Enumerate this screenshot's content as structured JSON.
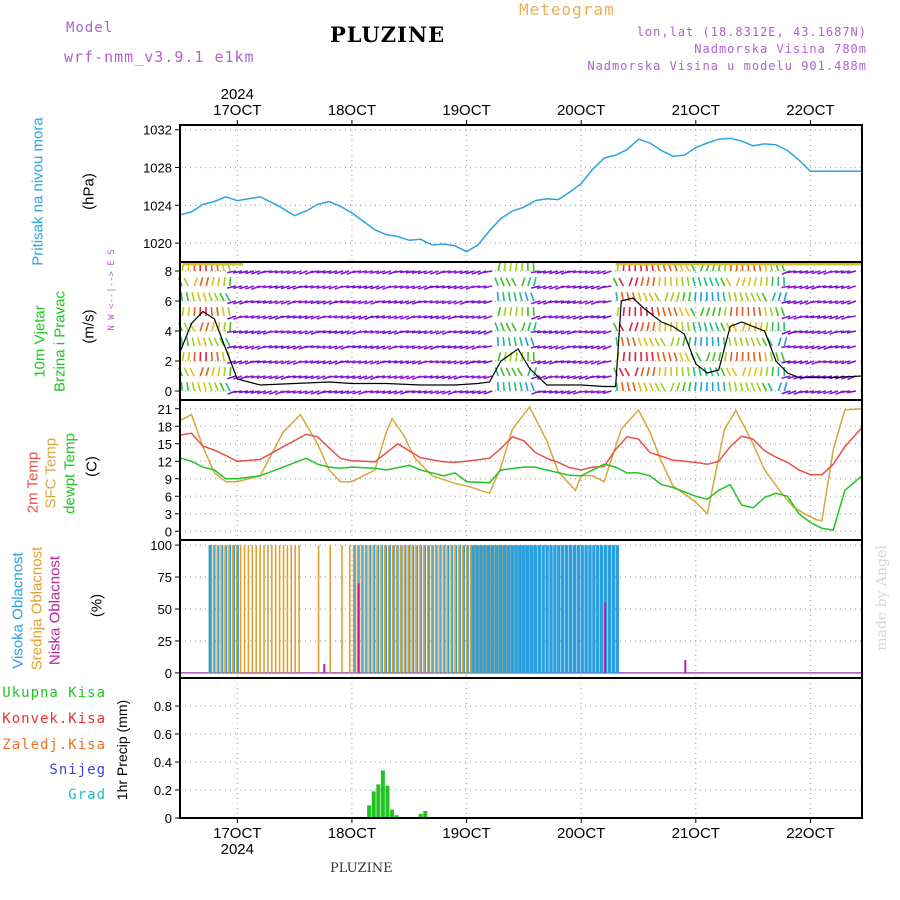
{
  "header": {
    "model_label": "Model",
    "model_name": "wrf-nmm_v3.9.1  e1km",
    "meteogram_label": "Meteogram",
    "title": "PLUZINE",
    "coords": "lon,lat (18.8312E, 43.1687N)",
    "elevation": "Nadmorska Visina 780m",
    "model_elevation": "Nadmorska Visina u modelu 901.488m",
    "footer_title": "PLUZINE",
    "watermark": "made by Angel"
  },
  "colors": {
    "pressure": "#2aa3e0",
    "temp2m": "#e8504a",
    "sfc_temp": "#d6a73c",
    "dewpt": "#22c422",
    "cloud_high": "#2a9fe0",
    "cloud_mid": "#e0a030",
    "cloud_low": "#c020a0",
    "precip_total": "#22c422",
    "precip_conv": "#e83030",
    "precip_frz": "#f07020",
    "snow": "#4040e0",
    "graupel": "#20c0c0",
    "wind_purple": "#8a1ad8",
    "header_purple": "#b060d0",
    "header_orange": "#e8b050"
  },
  "time_axis": {
    "year_label": "2024",
    "days": [
      "17OCT",
      "18OCT",
      "19OCT",
      "20OCT",
      "21OCT",
      "22OCT"
    ]
  },
  "panels": {
    "pressure": {
      "label": "Pritisak na nivou mora",
      "unit": "(hPa)"
    },
    "wind": {
      "label_line1": "10m Vjetar",
      "label_line2": "Brzina i Pravac",
      "unit": "(m/s)",
      "compass": "N  W <--|--> E  S"
    },
    "temp": {
      "label_line1": "2m Temp",
      "label_line2": "SFC Temp",
      "label_line3": "dewpt Temp",
      "unit": "(C)"
    },
    "cloud": {
      "label_line1": "Visoka Oblacnost",
      "label_line2": "Srednja Oblacnost",
      "label_line3": "Niska Oblacnost",
      "unit": "(%)"
    },
    "precip": {
      "legend": [
        "Ukupna Kisa",
        "Konvek.Kisa",
        "Zaledj.Kisa",
        "Snijeg",
        "Grad"
      ],
      "unit": "1hr Precip (mm)"
    }
  },
  "chart_data": [
    {
      "type": "line",
      "panel": "pressure",
      "ylabel": "(hPa)",
      "ylim": [
        1018,
        1032.5
      ],
      "yticks": [
        1020,
        1024,
        1028,
        1032
      ],
      "xlim_days": [
        16.5,
        22.45
      ],
      "series": [
        {
          "name": "Pritisak na nivou mora",
          "x": [
            16.5,
            16.6,
            16.7,
            16.8,
            16.9,
            17.0,
            17.1,
            17.2,
            17.35,
            17.5,
            17.6,
            17.7,
            17.8,
            17.9,
            18.0,
            18.1,
            18.2,
            18.3,
            18.4,
            18.5,
            18.6,
            18.7,
            18.8,
            18.9,
            19.0,
            19.1,
            19.2,
            19.3,
            19.4,
            19.5,
            19.6,
            19.7,
            19.8,
            19.9,
            20.0,
            20.1,
            20.2,
            20.3,
            20.4,
            20.5,
            20.6,
            20.7,
            20.8,
            20.9,
            21.0,
            21.1,
            21.2,
            21.3,
            21.4,
            21.5,
            21.6,
            21.7,
            21.8,
            21.9,
            22.0,
            22.1,
            22.2,
            22.3,
            22.45
          ],
          "values": [
            1023.0,
            1023.3,
            1024.1,
            1024.4,
            1024.9,
            1024.5,
            1024.7,
            1024.9,
            1024.0,
            1022.9,
            1023.4,
            1024.1,
            1024.4,
            1023.9,
            1023.2,
            1022.3,
            1021.4,
            1020.9,
            1020.7,
            1020.3,
            1020.4,
            1019.8,
            1019.9,
            1019.7,
            1019.1,
            1019.8,
            1021.3,
            1022.6,
            1023.4,
            1023.8,
            1024.5,
            1024.7,
            1024.6,
            1025.4,
            1026.3,
            1027.8,
            1029.0,
            1029.3,
            1029.9,
            1031.0,
            1030.6,
            1029.8,
            1029.2,
            1029.3,
            1030.1,
            1030.6,
            1031.0,
            1031.1,
            1030.8,
            1030.3,
            1030.5,
            1030.4,
            1029.8,
            1028.8,
            1027.6,
            1027.6,
            1027.6,
            1027.6,
            1027.6
          ]
        }
      ]
    },
    {
      "type": "line",
      "panel": "wind",
      "ylabel": "(m/s)",
      "ylim": [
        -0.6,
        8.6
      ],
      "yticks": [
        0,
        2,
        4,
        6,
        8
      ],
      "series": [
        {
          "name": "10m Vjetar",
          "x": [
            16.5,
            16.6,
            16.7,
            16.8,
            16.9,
            17.0,
            17.2,
            17.5,
            17.8,
            18.0,
            18.3,
            18.6,
            18.9,
            19.1,
            19.2,
            19.3,
            19.45,
            19.55,
            19.7,
            20.0,
            20.2,
            20.3,
            20.35,
            20.45,
            20.55,
            20.7,
            20.8,
            20.9,
            21.0,
            21.1,
            21.2,
            21.3,
            21.4,
            21.6,
            21.7,
            21.8,
            21.9,
            22.0,
            22.2,
            22.45
          ],
          "values": [
            2.6,
            4.5,
            5.3,
            4.8,
            2.8,
            0.8,
            0.4,
            0.5,
            0.6,
            0.5,
            0.5,
            0.4,
            0.4,
            0.5,
            0.6,
            2.0,
            2.8,
            1.5,
            0.4,
            0.4,
            0.3,
            0.3,
            6.0,
            6.2,
            5.5,
            4.6,
            4.3,
            3.8,
            1.8,
            1.2,
            1.4,
            4.3,
            4.6,
            4.0,
            2.0,
            1.2,
            0.9,
            0.9,
            0.9,
            1.0
          ]
        }
      ]
    },
    {
      "type": "line",
      "panel": "temp",
      "ylabel": "(C)",
      "ylim": [
        -1.5,
        22.5
      ],
      "yticks": [
        0,
        3,
        6,
        9,
        12,
        15,
        18,
        21
      ],
      "series": [
        {
          "name": "2m Temp",
          "x": [
            16.5,
            16.6,
            16.7,
            16.8,
            16.9,
            17.0,
            17.2,
            17.4,
            17.6,
            17.7,
            17.8,
            17.9,
            18.0,
            18.2,
            18.4,
            18.5,
            18.6,
            18.8,
            18.9,
            19.0,
            19.2,
            19.3,
            19.4,
            19.5,
            19.6,
            19.7,
            19.8,
            19.9,
            20.0,
            20.1,
            20.2,
            20.3,
            20.4,
            20.5,
            20.6,
            20.8,
            21.0,
            21.1,
            21.2,
            21.3,
            21.4,
            21.5,
            21.6,
            21.7,
            21.8,
            21.9,
            22.0,
            22.1,
            22.2,
            22.3,
            22.45
          ],
          "values": [
            16.5,
            16.8,
            14.6,
            13.9,
            13.0,
            12.0,
            12.3,
            14.5,
            16.6,
            16.2,
            14.3,
            12.5,
            12.1,
            11.9,
            15.0,
            13.8,
            12.6,
            11.9,
            11.8,
            12.0,
            12.5,
            14.2,
            16.2,
            15.5,
            13.5,
            12.5,
            11.8,
            10.9,
            10.5,
            11.0,
            11.1,
            14.0,
            16.2,
            15.8,
            13.5,
            12.2,
            11.8,
            11.5,
            12.0,
            14.5,
            16.3,
            15.8,
            13.8,
            12.7,
            11.8,
            10.5,
            9.7,
            9.7,
            11.5,
            14.5,
            17.8
          ]
        },
        {
          "name": "SFC Temp",
          "x": [
            16.5,
            16.6,
            16.7,
            16.8,
            16.9,
            17.0,
            17.2,
            17.4,
            17.55,
            17.7,
            17.8,
            17.9,
            18.0,
            18.2,
            18.3,
            18.35,
            18.45,
            18.55,
            18.7,
            18.9,
            19.0,
            19.2,
            19.3,
            19.4,
            19.55,
            19.7,
            19.8,
            19.95,
            20.0,
            20.1,
            20.2,
            20.35,
            20.5,
            20.6,
            20.7,
            20.8,
            21.0,
            21.1,
            21.25,
            21.35,
            21.5,
            21.6,
            21.75,
            21.85,
            21.95,
            22.0,
            22.05,
            22.1,
            22.2,
            22.3,
            22.45
          ],
          "values": [
            19.0,
            20.0,
            14.5,
            10.0,
            8.5,
            8.5,
            9.5,
            17.0,
            20.0,
            15.0,
            10.5,
            8.5,
            8.5,
            10.5,
            17.0,
            19.3,
            16.5,
            12.5,
            9.5,
            8.2,
            7.8,
            6.5,
            11.0,
            17.5,
            21.3,
            15.5,
            10.2,
            7.0,
            9.5,
            9.5,
            8.5,
            17.5,
            20.8,
            17.0,
            12.0,
            7.8,
            5.0,
            3.0,
            17.5,
            20.7,
            15.0,
            10.5,
            6.5,
            4.2,
            3.0,
            2.5,
            2.0,
            1.8,
            14.0,
            20.8,
            21.0
          ]
        },
        {
          "name": "dewpt Temp",
          "x": [
            16.5,
            16.6,
            16.7,
            16.8,
            16.9,
            17.0,
            17.2,
            17.4,
            17.6,
            17.7,
            17.8,
            17.9,
            18.0,
            18.2,
            18.3,
            18.5,
            18.6,
            18.8,
            18.9,
            19.0,
            19.2,
            19.3,
            19.5,
            19.6,
            19.7,
            19.9,
            20.0,
            20.2,
            20.3,
            20.4,
            20.5,
            20.6,
            20.7,
            20.8,
            21.0,
            21.1,
            21.2,
            21.3,
            21.4,
            21.5,
            21.6,
            21.7,
            21.8,
            21.9,
            22.0,
            22.1,
            22.2,
            22.3,
            22.45
          ],
          "values": [
            12.6,
            12.0,
            11.0,
            10.5,
            9.0,
            9.0,
            9.5,
            11.0,
            12.5,
            11.5,
            11.0,
            10.8,
            11.0,
            10.8,
            10.5,
            11.3,
            10.5,
            9.5,
            10.0,
            8.5,
            8.3,
            10.5,
            11.0,
            11.0,
            10.5,
            9.6,
            9.5,
            11.5,
            11.0,
            10.0,
            10.0,
            9.5,
            8.0,
            7.5,
            6.0,
            5.5,
            7.0,
            8.0,
            4.5,
            4.0,
            5.8,
            6.5,
            6.0,
            3.0,
            1.5,
            0.5,
            0.2,
            7.0,
            9.5
          ]
        }
      ]
    },
    {
      "type": "bar",
      "panel": "cloud",
      "ylabel": "(%)",
      "ylim": [
        -4,
        104
      ],
      "yticks": [
        0,
        25,
        50,
        75,
        100
      ],
      "series": [
        {
          "name": "Visoka Oblacnost",
          "x_range": [
            16.75,
            20.3
          ],
          "values": [
            100
          ]
        },
        {
          "name": "Srednja Oblacnost",
          "x_range": [
            16.75,
            19.6
          ],
          "values": [
            100
          ]
        },
        {
          "name": "Niska Oblacnost",
          "x": [
            17.75,
            18.05,
            20.2,
            20.9
          ],
          "values": [
            7,
            70,
            55,
            10
          ]
        }
      ]
    },
    {
      "type": "bar",
      "panel": "precip",
      "ylabel": "1hr Precip (mm)",
      "ylim": [
        0,
        1.0
      ],
      "yticks": [
        0,
        0.2,
        0.4,
        0.6,
        0.8
      ],
      "series": [
        {
          "name": "Ukupna Kisa",
          "x": [
            18.15,
            18.19,
            18.23,
            18.27,
            18.31,
            18.35,
            18.39,
            18.6,
            18.64
          ],
          "values": [
            0.09,
            0.19,
            0.24,
            0.34,
            0.23,
            0.06,
            0.02,
            0.03,
            0.05
          ]
        }
      ]
    }
  ]
}
